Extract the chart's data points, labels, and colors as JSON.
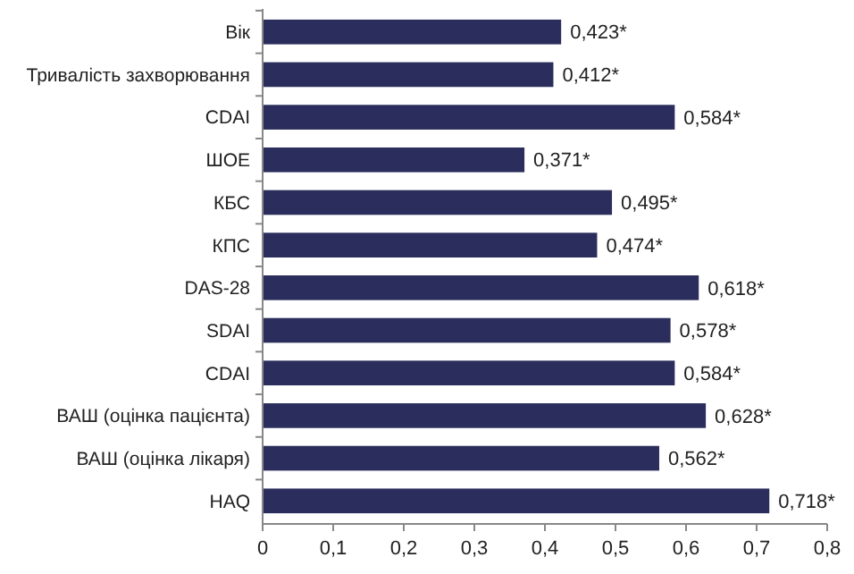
{
  "chart_data": {
    "type": "bar",
    "orientation": "horizontal",
    "categories": [
      "Вік",
      "Тривалість захворювання",
      "CDAI",
      "ШОЕ",
      "КБС",
      "КПС",
      "DAS-28",
      "SDAI",
      "CDAI",
      "ВАШ (оцінка пацієнта)",
      "ВАШ (оцінка лікаря)",
      "HAQ"
    ],
    "values": [
      0.423,
      0.412,
      0.584,
      0.371,
      0.495,
      0.474,
      0.618,
      0.578,
      0.584,
      0.628,
      0.562,
      0.718
    ],
    "value_labels": [
      "0,423*",
      "0,412*",
      "0,584*",
      "0,371*",
      "0,495*",
      "0,474*",
      "0,618*",
      "0,578*",
      "0,584*",
      "0,628*",
      "0,562*",
      "0,718*"
    ],
    "color": "#2b2e5c",
    "xlim": [
      0,
      0.8
    ],
    "xticks": [
      {
        "value": 0,
        "label": "0"
      },
      {
        "value": 0.1,
        "label": "0,1"
      },
      {
        "value": 0.2,
        "label": "0,2"
      },
      {
        "value": 0.3,
        "label": "0,3"
      },
      {
        "value": 0.4,
        "label": "0,4"
      },
      {
        "value": 0.5,
        "label": "0,5"
      },
      {
        "value": 0.6,
        "label": "0,6"
      },
      {
        "value": 0.7,
        "label": "0,7"
      },
      {
        "value": 0.8,
        "label": "0,8"
      }
    ],
    "grid": false
  }
}
